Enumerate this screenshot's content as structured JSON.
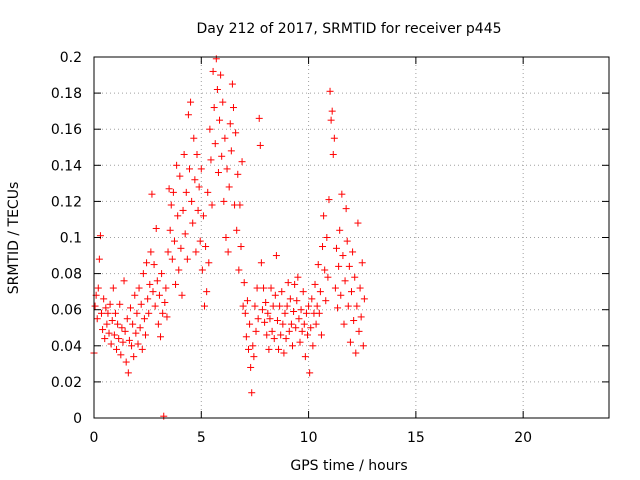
{
  "chart_data": {
    "type": "scatter",
    "title": "Day 212 of 2017, SRMTID for receiver p445",
    "xlabel": "GPS time / hours",
    "ylabel": "SRMTID / TECUs",
    "xlim": [
      0,
      24
    ],
    "ylim": [
      0,
      0.2
    ],
    "xticks": [
      0,
      5,
      10,
      15,
      20
    ],
    "xtick_labels": [
      "0",
      "5",
      "10",
      "15",
      "20"
    ],
    "yticks": [
      0,
      0.02,
      0.04,
      0.06,
      0.08,
      0.1,
      0.12,
      0.14,
      0.16,
      0.18,
      0.2
    ],
    "ytick_labels": [
      "0",
      "0.02",
      "0.04",
      "0.06",
      "0.08",
      "0.1",
      "0.12",
      "0.14",
      "0.16",
      "0.18",
      "0.2"
    ],
    "grid": true,
    "marker": "+",
    "color": "#ff0000",
    "series": [
      {
        "name": "SRMTID",
        "points": [
          [
            0.0,
            0.036
          ],
          [
            0.05,
            0.062
          ],
          [
            0.1,
            0.068
          ],
          [
            0.15,
            0.055
          ],
          [
            0.2,
            0.072
          ],
          [
            0.25,
            0.088
          ],
          [
            0.3,
            0.101
          ],
          [
            0.35,
            0.058
          ],
          [
            0.4,
            0.049
          ],
          [
            0.45,
            0.066
          ],
          [
            0.5,
            0.044
          ],
          [
            0.55,
            0.061
          ],
          [
            0.6,
            0.052
          ],
          [
            0.65,
            0.058
          ],
          [
            0.7,
            0.047
          ],
          [
            0.75,
            0.063
          ],
          [
            0.8,
            0.041
          ],
          [
            0.85,
            0.054
          ],
          [
            0.9,
            0.072
          ],
          [
            0.95,
            0.046
          ],
          [
            1.0,
            0.058
          ],
          [
            1.05,
            0.038
          ],
          [
            1.1,
            0.052
          ],
          [
            1.15,
            0.044
          ],
          [
            1.2,
            0.063
          ],
          [
            1.25,
            0.035
          ],
          [
            1.3,
            0.05
          ],
          [
            1.35,
            0.042
          ],
          [
            1.4,
            0.076
          ],
          [
            1.45,
            0.048
          ],
          [
            1.5,
            0.031
          ],
          [
            1.55,
            0.055
          ],
          [
            1.6,
            0.025
          ],
          [
            1.65,
            0.043
          ],
          [
            1.7,
            0.061
          ],
          [
            1.75,
            0.04
          ],
          [
            1.8,
            0.052
          ],
          [
            1.85,
            0.034
          ],
          [
            1.9,
            0.068
          ],
          [
            1.95,
            0.047
          ],
          [
            2.0,
            0.058
          ],
          [
            2.05,
            0.041
          ],
          [
            2.1,
            0.072
          ],
          [
            2.15,
            0.05
          ],
          [
            2.2,
            0.063
          ],
          [
            2.25,
            0.038
          ],
          [
            2.3,
            0.08
          ],
          [
            2.35,
            0.055
          ],
          [
            2.4,
            0.046
          ],
          [
            2.45,
            0.086
          ],
          [
            2.5,
            0.066
          ],
          [
            2.55,
            0.058
          ],
          [
            2.6,
            0.074
          ],
          [
            2.65,
            0.092
          ],
          [
            2.7,
            0.124
          ],
          [
            2.75,
            0.07
          ],
          [
            2.8,
            0.085
          ],
          [
            2.85,
            0.062
          ],
          [
            2.9,
            0.105
          ],
          [
            2.95,
            0.076
          ],
          [
            3.0,
            0.052
          ],
          [
            3.05,
            0.068
          ],
          [
            3.1,
            0.045
          ],
          [
            3.15,
            0.08
          ],
          [
            3.2,
            0.058
          ],
          [
            3.25,
            0.001
          ],
          [
            3.3,
            0.064
          ],
          [
            3.35,
            0.072
          ],
          [
            3.4,
            0.056
          ],
          [
            3.45,
            0.092
          ],
          [
            3.5,
            0.127
          ],
          [
            3.55,
            0.104
          ],
          [
            3.6,
            0.118
          ],
          [
            3.65,
            0.088
          ],
          [
            3.7,
            0.125
          ],
          [
            3.75,
            0.098
          ],
          [
            3.8,
            0.074
          ],
          [
            3.85,
            0.14
          ],
          [
            3.9,
            0.112
          ],
          [
            3.95,
            0.082
          ],
          [
            4.0,
            0.134
          ],
          [
            4.05,
            0.094
          ],
          [
            4.1,
            0.068
          ],
          [
            4.15,
            0.115
          ],
          [
            4.2,
            0.146
          ],
          [
            4.25,
            0.102
          ],
          [
            4.3,
            0.125
          ],
          [
            4.35,
            0.088
          ],
          [
            4.4,
            0.168
          ],
          [
            4.45,
            0.138
          ],
          [
            4.5,
            0.175
          ],
          [
            4.55,
            0.12
          ],
          [
            4.6,
            0.108
          ],
          [
            4.65,
            0.155
          ],
          [
            4.7,
            0.132
          ],
          [
            4.75,
            0.092
          ],
          [
            4.8,
            0.146
          ],
          [
            4.85,
            0.115
          ],
          [
            4.9,
            0.128
          ],
          [
            4.95,
            0.098
          ],
          [
            5.0,
            0.138
          ],
          [
            5.05,
            0.082
          ],
          [
            5.1,
            0.112
          ],
          [
            5.15,
            0.062
          ],
          [
            5.2,
            0.095
          ],
          [
            5.25,
            0.07
          ],
          [
            5.3,
            0.125
          ],
          [
            5.35,
            0.086
          ],
          [
            5.4,
            0.16
          ],
          [
            5.45,
            0.143
          ],
          [
            5.5,
            0.118
          ],
          [
            5.55,
            0.192
          ],
          [
            5.6,
            0.172
          ],
          [
            5.65,
            0.152
          ],
          [
            5.7,
            0.199
          ],
          [
            5.75,
            0.182
          ],
          [
            5.8,
            0.136
          ],
          [
            5.85,
            0.165
          ],
          [
            5.9,
            0.19
          ],
          [
            5.95,
            0.145
          ],
          [
            6.0,
            0.175
          ],
          [
            6.05,
            0.12
          ],
          [
            6.1,
            0.155
          ],
          [
            6.15,
            0.1
          ],
          [
            6.2,
            0.138
          ],
          [
            6.25,
            0.092
          ],
          [
            6.3,
            0.128
          ],
          [
            6.35,
            0.163
          ],
          [
            6.4,
            0.148
          ],
          [
            6.45,
            0.185
          ],
          [
            6.5,
            0.172
          ],
          [
            6.55,
            0.118
          ],
          [
            6.6,
            0.158
          ],
          [
            6.65,
            0.104
          ],
          [
            6.7,
            0.135
          ],
          [
            6.75,
            0.082
          ],
          [
            6.8,
            0.118
          ],
          [
            6.85,
            0.095
          ],
          [
            6.9,
            0.142
          ],
          [
            6.95,
            0.062
          ],
          [
            7.0,
            0.075
          ],
          [
            7.05,
            0.058
          ],
          [
            7.1,
            0.045
          ],
          [
            7.15,
            0.065
          ],
          [
            7.2,
            0.038
          ],
          [
            7.25,
            0.052
          ],
          [
            7.3,
            0.028
          ],
          [
            7.35,
            0.014
          ],
          [
            7.4,
            0.04
          ],
          [
            7.45,
            0.034
          ],
          [
            7.5,
            0.062
          ],
          [
            7.55,
            0.048
          ],
          [
            7.6,
            0.072
          ],
          [
            7.65,
            0.055
          ],
          [
            7.7,
            0.166
          ],
          [
            7.75,
            0.151
          ],
          [
            7.8,
            0.086
          ],
          [
            7.85,
            0.06
          ],
          [
            7.9,
            0.072
          ],
          [
            7.95,
            0.053
          ],
          [
            8.0,
            0.064
          ],
          [
            8.05,
            0.046
          ],
          [
            8.1,
            0.058
          ],
          [
            8.15,
            0.038
          ],
          [
            8.2,
            0.055
          ],
          [
            8.25,
            0.072
          ],
          [
            8.3,
            0.048
          ],
          [
            8.35,
            0.062
          ],
          [
            8.4,
            0.044
          ],
          [
            8.45,
            0.068
          ],
          [
            8.5,
            0.09
          ],
          [
            8.55,
            0.054
          ],
          [
            8.6,
            0.038
          ],
          [
            8.65,
            0.062
          ],
          [
            8.7,
            0.046
          ],
          [
            8.75,
            0.07
          ],
          [
            8.8,
            0.052
          ],
          [
            8.85,
            0.036
          ],
          [
            8.9,
            0.058
          ],
          [
            8.95,
            0.044
          ],
          [
            9.0,
            0.062
          ],
          [
            9.05,
            0.075
          ],
          [
            9.1,
            0.048
          ],
          [
            9.15,
            0.066
          ],
          [
            9.2,
            0.052
          ],
          [
            9.25,
            0.04
          ],
          [
            9.3,
            0.059
          ],
          [
            9.35,
            0.074
          ],
          [
            9.4,
            0.05
          ],
          [
            9.45,
            0.065
          ],
          [
            9.5,
            0.078
          ],
          [
            9.55,
            0.055
          ],
          [
            9.6,
            0.042
          ],
          [
            9.65,
            0.06
          ],
          [
            9.7,
            0.048
          ],
          [
            9.75,
            0.07
          ],
          [
            9.8,
            0.052
          ],
          [
            9.85,
            0.034
          ],
          [
            9.9,
            0.058
          ],
          [
            9.95,
            0.046
          ],
          [
            10.0,
            0.062
          ],
          [
            10.05,
            0.025
          ],
          [
            10.1,
            0.05
          ],
          [
            10.15,
            0.066
          ],
          [
            10.2,
            0.04
          ],
          [
            10.25,
            0.058
          ],
          [
            10.3,
            0.074
          ],
          [
            10.35,
            0.052
          ],
          [
            10.4,
            0.062
          ],
          [
            10.45,
            0.085
          ],
          [
            10.5,
            0.058
          ],
          [
            10.55,
            0.07
          ],
          [
            10.6,
            0.046
          ],
          [
            10.65,
            0.095
          ],
          [
            10.7,
            0.112
          ],
          [
            10.75,
            0.082
          ],
          [
            10.8,
            0.065
          ],
          [
            10.85,
            0.1
          ],
          [
            10.9,
            0.078
          ],
          [
            10.95,
            0.121
          ],
          [
            11.0,
            0.181
          ],
          [
            11.05,
            0.165
          ],
          [
            11.1,
            0.17
          ],
          [
            11.15,
            0.146
          ],
          [
            11.2,
            0.155
          ],
          [
            11.25,
            0.072
          ],
          [
            11.3,
            0.094
          ],
          [
            11.35,
            0.061
          ],
          [
            11.4,
            0.084
          ],
          [
            11.45,
            0.104
          ],
          [
            11.5,
            0.068
          ],
          [
            11.55,
            0.124
          ],
          [
            11.6,
            0.09
          ],
          [
            11.65,
            0.052
          ],
          [
            11.7,
            0.076
          ],
          [
            11.75,
            0.116
          ],
          [
            11.8,
            0.098
          ],
          [
            11.85,
            0.062
          ],
          [
            11.9,
            0.084
          ],
          [
            11.95,
            0.042
          ],
          [
            12.0,
            0.07
          ],
          [
            12.05,
            0.092
          ],
          [
            12.1,
            0.054
          ],
          [
            12.15,
            0.078
          ],
          [
            12.2,
            0.036
          ],
          [
            12.25,
            0.062
          ],
          [
            12.3,
            0.108
          ],
          [
            12.35,
            0.048
          ],
          [
            12.4,
            0.072
          ],
          [
            12.45,
            0.056
          ],
          [
            12.5,
            0.086
          ],
          [
            12.55,
            0.04
          ],
          [
            12.6,
            0.066
          ]
        ]
      }
    ]
  }
}
